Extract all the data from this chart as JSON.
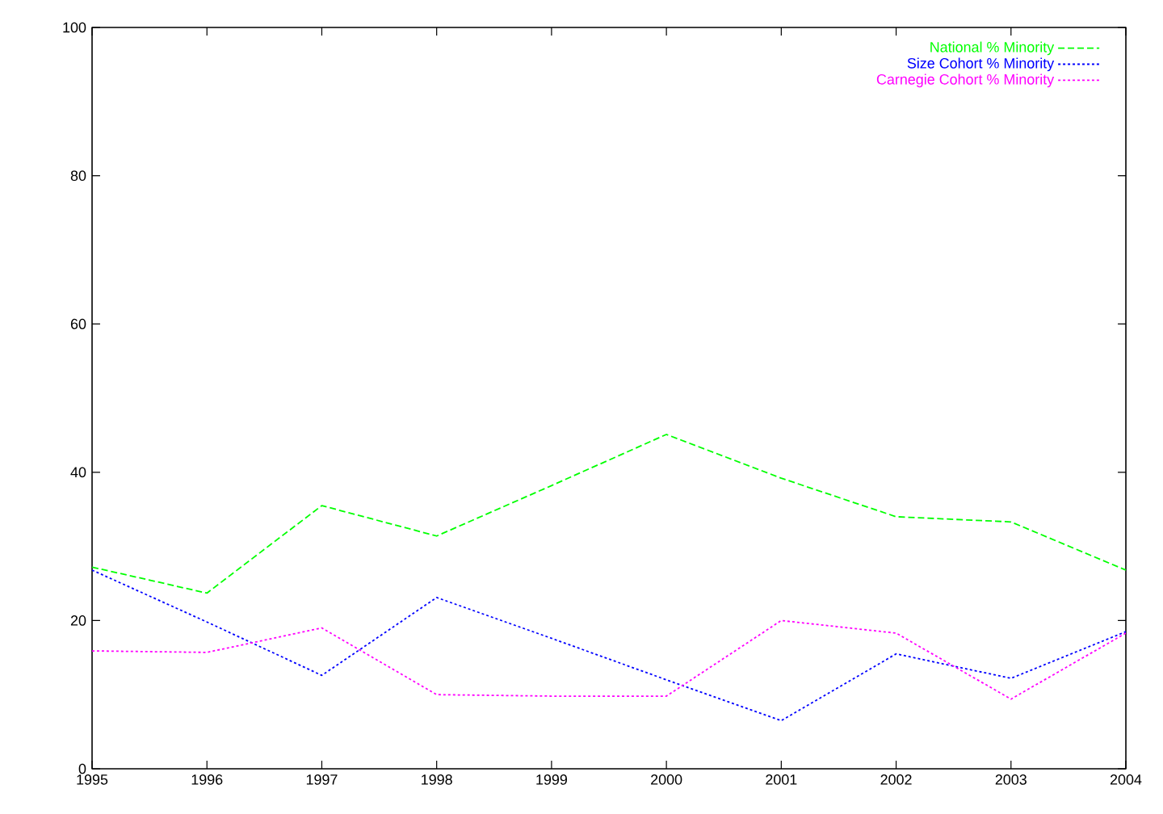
{
  "chart_data": {
    "type": "line",
    "x": [
      1995,
      1996,
      1997,
      1998,
      1999,
      2000,
      2001,
      2002,
      2003,
      2004
    ],
    "series": [
      {
        "name": "National % Minority",
        "color": "#00ff00",
        "line_style": "dashed",
        "values": [
          27.2,
          23.7,
          35.5,
          31.4,
          38.2,
          45.1,
          39.2,
          34.0,
          33.3,
          26.8
        ]
      },
      {
        "name": "Size Cohort % Minority",
        "color": "#0000ff",
        "line_style": "dotted",
        "values": [
          26.8,
          19.8,
          12.6,
          23.1,
          17.6,
          12.0,
          6.5,
          15.5,
          12.2,
          18.5
        ]
      },
      {
        "name": "Carnegie Cohort % Minority",
        "color": "#ff00ff",
        "line_style": "dotted",
        "values": [
          15.9,
          15.7,
          19.0,
          10.0,
          9.8,
          9.8,
          20.0,
          18.3,
          9.4,
          18.3
        ]
      }
    ],
    "xlim": [
      1995,
      2004
    ],
    "xticks": [
      1995,
      1996,
      1997,
      1998,
      1999,
      2000,
      2001,
      2002,
      2003,
      2004
    ],
    "ylim": [
      0,
      100
    ],
    "yticks": [
      0,
      20,
      40,
      60,
      80,
      100
    ],
    "legend": "top right",
    "marker": "none",
    "grid": false
  }
}
